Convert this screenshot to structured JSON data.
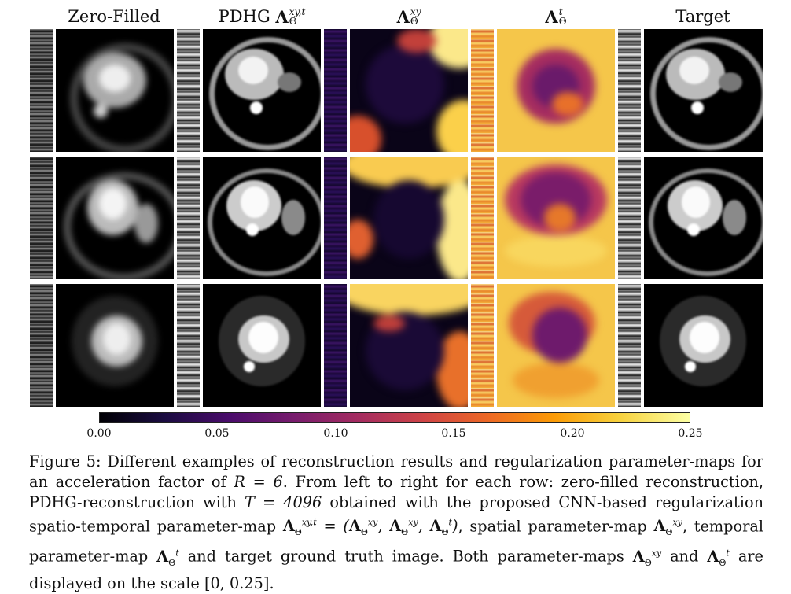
{
  "headers": {
    "zero_filled": "Zero-Filled",
    "pdhg_prefix": "PDHG",
    "pdhg_symbol": "Λ",
    "pdhg_sup": "xy,t",
    "pdhg_sub": "Θ",
    "lam_xy_symbol": "Λ",
    "lam_xy_sup": "xy",
    "lam_xy_sub": "Θ",
    "lam_t_symbol": "Λ",
    "lam_t_sup": "t",
    "lam_t_sub": "Θ",
    "target": "Target"
  },
  "colorbar": {
    "ticks": [
      "0.00",
      "0.05",
      "0.10",
      "0.15",
      "0.20",
      "0.25"
    ],
    "colormap": "inferno",
    "range": [
      0,
      0.25
    ]
  },
  "caption": {
    "label": "Figure 5:",
    "text_1": "Different examples of reconstruction results and regularization parameter-maps for an acceleration factor of",
    "r_eq": "R = 6",
    "text_2": ". From left to right for each row: zero-filled reconstruction, PDHG-reconstruction with",
    "t_eq": "T = 4096",
    "text_3": "obtained with the proposed CNN-based regularization spatio-temporal parameter-map",
    "map_eq": "Λ_Θ^{xy,t} = (Λ_Θ^{xy}, Λ_Θ^{xy}, Λ_Θ^{t})",
    "text_4": ", spatial parameter-map",
    "text_5": ", temporal parameter-map",
    "text_6": "and target ground truth image. Both parameter-maps",
    "text_7": "and",
    "text_8": "are displayed on the scale",
    "scale": "[0, 0.25]."
  }
}
